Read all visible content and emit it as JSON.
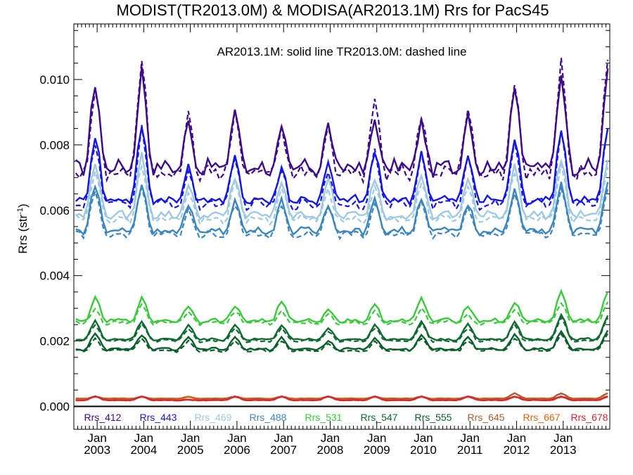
{
  "chart_data": {
    "type": "line",
    "title": "MODIST(TR2013.0M) & MODISA(AR2013.1M)  Rrs for PacS45",
    "subtitle": "AR2013.1M: solid line   TR2013.0M: dashed line",
    "ylabel_main": "Rrs (str",
    "ylabel_sup": "-1",
    "ylabel_end": ")",
    "ylim": [
      -0.0007,
      0.0117
    ],
    "xlim": [
      2002.5,
      2014.0
    ],
    "yticks": [
      0.0,
      0.002,
      0.004,
      0.006,
      0.008,
      0.01
    ],
    "ytick_labels": [
      "0.000",
      "0.002",
      "0.004",
      "0.006",
      "0.008",
      "0.010"
    ],
    "xticks": [
      2003,
      2004,
      2005,
      2006,
      2007,
      2008,
      2009,
      2010,
      2011,
      2012,
      2013
    ],
    "xtick_top": "Jan",
    "xtick_labels": [
      "2003",
      "2004",
      "2005",
      "2006",
      "2007",
      "2008",
      "2009",
      "2010",
      "2011",
      "2012",
      "2013"
    ],
    "zero_line": 0.0,
    "grid": false,
    "series": [
      {
        "name": "Rrs_412",
        "color": "#3d0a8a",
        "base": 0.0076,
        "amp": 0.0011,
        "peaks": [
          0.0099,
          0.0103,
          0.0087,
          0.0091,
          0.0084,
          0.0086,
          0.0088,
          0.0087,
          0.009,
          0.0099,
          0.0102
        ],
        "dpeaks": [
          0.0097,
          0.0105,
          0.0089,
          0.009,
          0.0085,
          0.0085,
          0.0094,
          0.0088,
          0.0091,
          0.01,
          0.0105
        ]
      },
      {
        "name": "Rrs_443",
        "color": "#1515ea",
        "base": 0.0065,
        "amp": 0.0007,
        "peaks": [
          0.0083,
          0.0086,
          0.0073,
          0.0076,
          0.0073,
          0.0074,
          0.0078,
          0.0078,
          0.0077,
          0.0082,
          0.0085
        ],
        "dpeaks": [
          0.008,
          0.0085,
          0.0072,
          0.0075,
          0.0072,
          0.0072,
          0.0078,
          0.0077,
          0.0076,
          0.0081,
          0.0084
        ]
      },
      {
        "name": "Rrs_469",
        "color": "#9ec9e2",
        "base": 0.006,
        "amp": 0.0006,
        "peaks": [
          0.0075,
          0.0077,
          0.0068,
          0.007,
          0.0069,
          0.0069,
          0.007,
          0.0071,
          0.007,
          0.0074,
          0.0076
        ],
        "dpeaks": [
          0.0072,
          0.0074,
          0.0066,
          0.0068,
          0.0067,
          0.0066,
          0.0068,
          0.0069,
          0.0068,
          0.0072,
          0.0074
        ]
      },
      {
        "name": "Rrs_488",
        "color": "#3b86bf",
        "base": 0.0055,
        "amp": 0.0005,
        "peaks": [
          0.0068,
          0.0068,
          0.0061,
          0.0063,
          0.0063,
          0.0062,
          0.0063,
          0.0064,
          0.0062,
          0.0066,
          0.0068
        ],
        "dpeaks": [
          0.0066,
          0.0067,
          0.006,
          0.0062,
          0.0062,
          0.0061,
          0.0062,
          0.0063,
          0.0061,
          0.0065,
          0.0067
        ]
      },
      {
        "name": "Rrs_531",
        "color": "#3cc83c",
        "base": 0.0027,
        "amp": 0.0003,
        "peaks": [
          0.0033,
          0.0033,
          0.0031,
          0.0031,
          0.0032,
          0.003,
          0.0031,
          0.0033,
          0.0031,
          0.0032,
          0.0035
        ],
        "dpeaks": [
          0.003,
          0.0031,
          0.0029,
          0.0029,
          0.0029,
          0.0028,
          0.0029,
          0.003,
          0.0028,
          0.003,
          0.0032
        ]
      },
      {
        "name": "Rrs_547",
        "color": "#0e6b30",
        "base": 0.0021,
        "amp": 0.0002,
        "peaks": [
          0.0026,
          0.0026,
          0.0025,
          0.0025,
          0.0025,
          0.0024,
          0.0025,
          0.0026,
          0.0025,
          0.0026,
          0.0028
        ],
        "dpeaks": [
          0.0025,
          0.0025,
          0.0024,
          0.0024,
          0.0024,
          0.0023,
          0.0024,
          0.0025,
          0.0024,
          0.0025,
          0.0027
        ]
      },
      {
        "name": "Rrs_555",
        "color": "#0a5e2c",
        "base": 0.0018,
        "amp": 0.0002,
        "peaks": [
          0.0022,
          0.0022,
          0.0021,
          0.0021,
          0.0021,
          0.002,
          0.0021,
          0.0022,
          0.0021,
          0.0022,
          0.0023
        ],
        "dpeaks": [
          0.0021,
          0.0021,
          0.002,
          0.002,
          0.002,
          0.0019,
          0.002,
          0.0021,
          0.002,
          0.0021,
          0.0022
        ]
      },
      {
        "name": "Rrs_645",
        "color": "#b4592a",
        "base": 0.00025,
        "amp": 4e-05,
        "peaks": [
          0.0003,
          0.0003,
          0.0003,
          0.0003,
          0.0003,
          0.0003,
          0.0003,
          0.0003,
          0.0003,
          0.0004,
          0.0004
        ],
        "dpeaks": [
          0.0003,
          0.0003,
          0.0003,
          0.0003,
          0.0003,
          0.0003,
          0.0003,
          0.0003,
          0.0003,
          0.0003,
          0.0003
        ]
      },
      {
        "name": "Rrs_667",
        "color": "#e0630e",
        "base": 0.00022,
        "amp": 4e-05,
        "peaks": [
          0.0003,
          0.0003,
          0.0003,
          0.0003,
          0.0003,
          0.0003,
          0.0003,
          0.0003,
          0.0003,
          0.0003,
          0.0003
        ],
        "dpeaks": [
          0.0003,
          0.0003,
          0.0003,
          0.0003,
          0.0003,
          0.0003,
          0.0003,
          0.0003,
          0.0003,
          0.0003,
          0.0003
        ]
      },
      {
        "name": "Rrs_678",
        "color": "#d6262e",
        "base": 0.0002,
        "amp": 4e-05,
        "peaks": [
          0.0003,
          0.0003,
          0.0002,
          0.0003,
          0.0003,
          0.0003,
          0.0003,
          0.0003,
          0.0003,
          0.0003,
          0.0003
        ],
        "dpeaks": [
          0.0003,
          0.0003,
          0.0002,
          0.0003,
          0.0003,
          0.0003,
          0.0003,
          0.0003,
          0.0003,
          0.0003,
          0.0003
        ]
      }
    ]
  }
}
